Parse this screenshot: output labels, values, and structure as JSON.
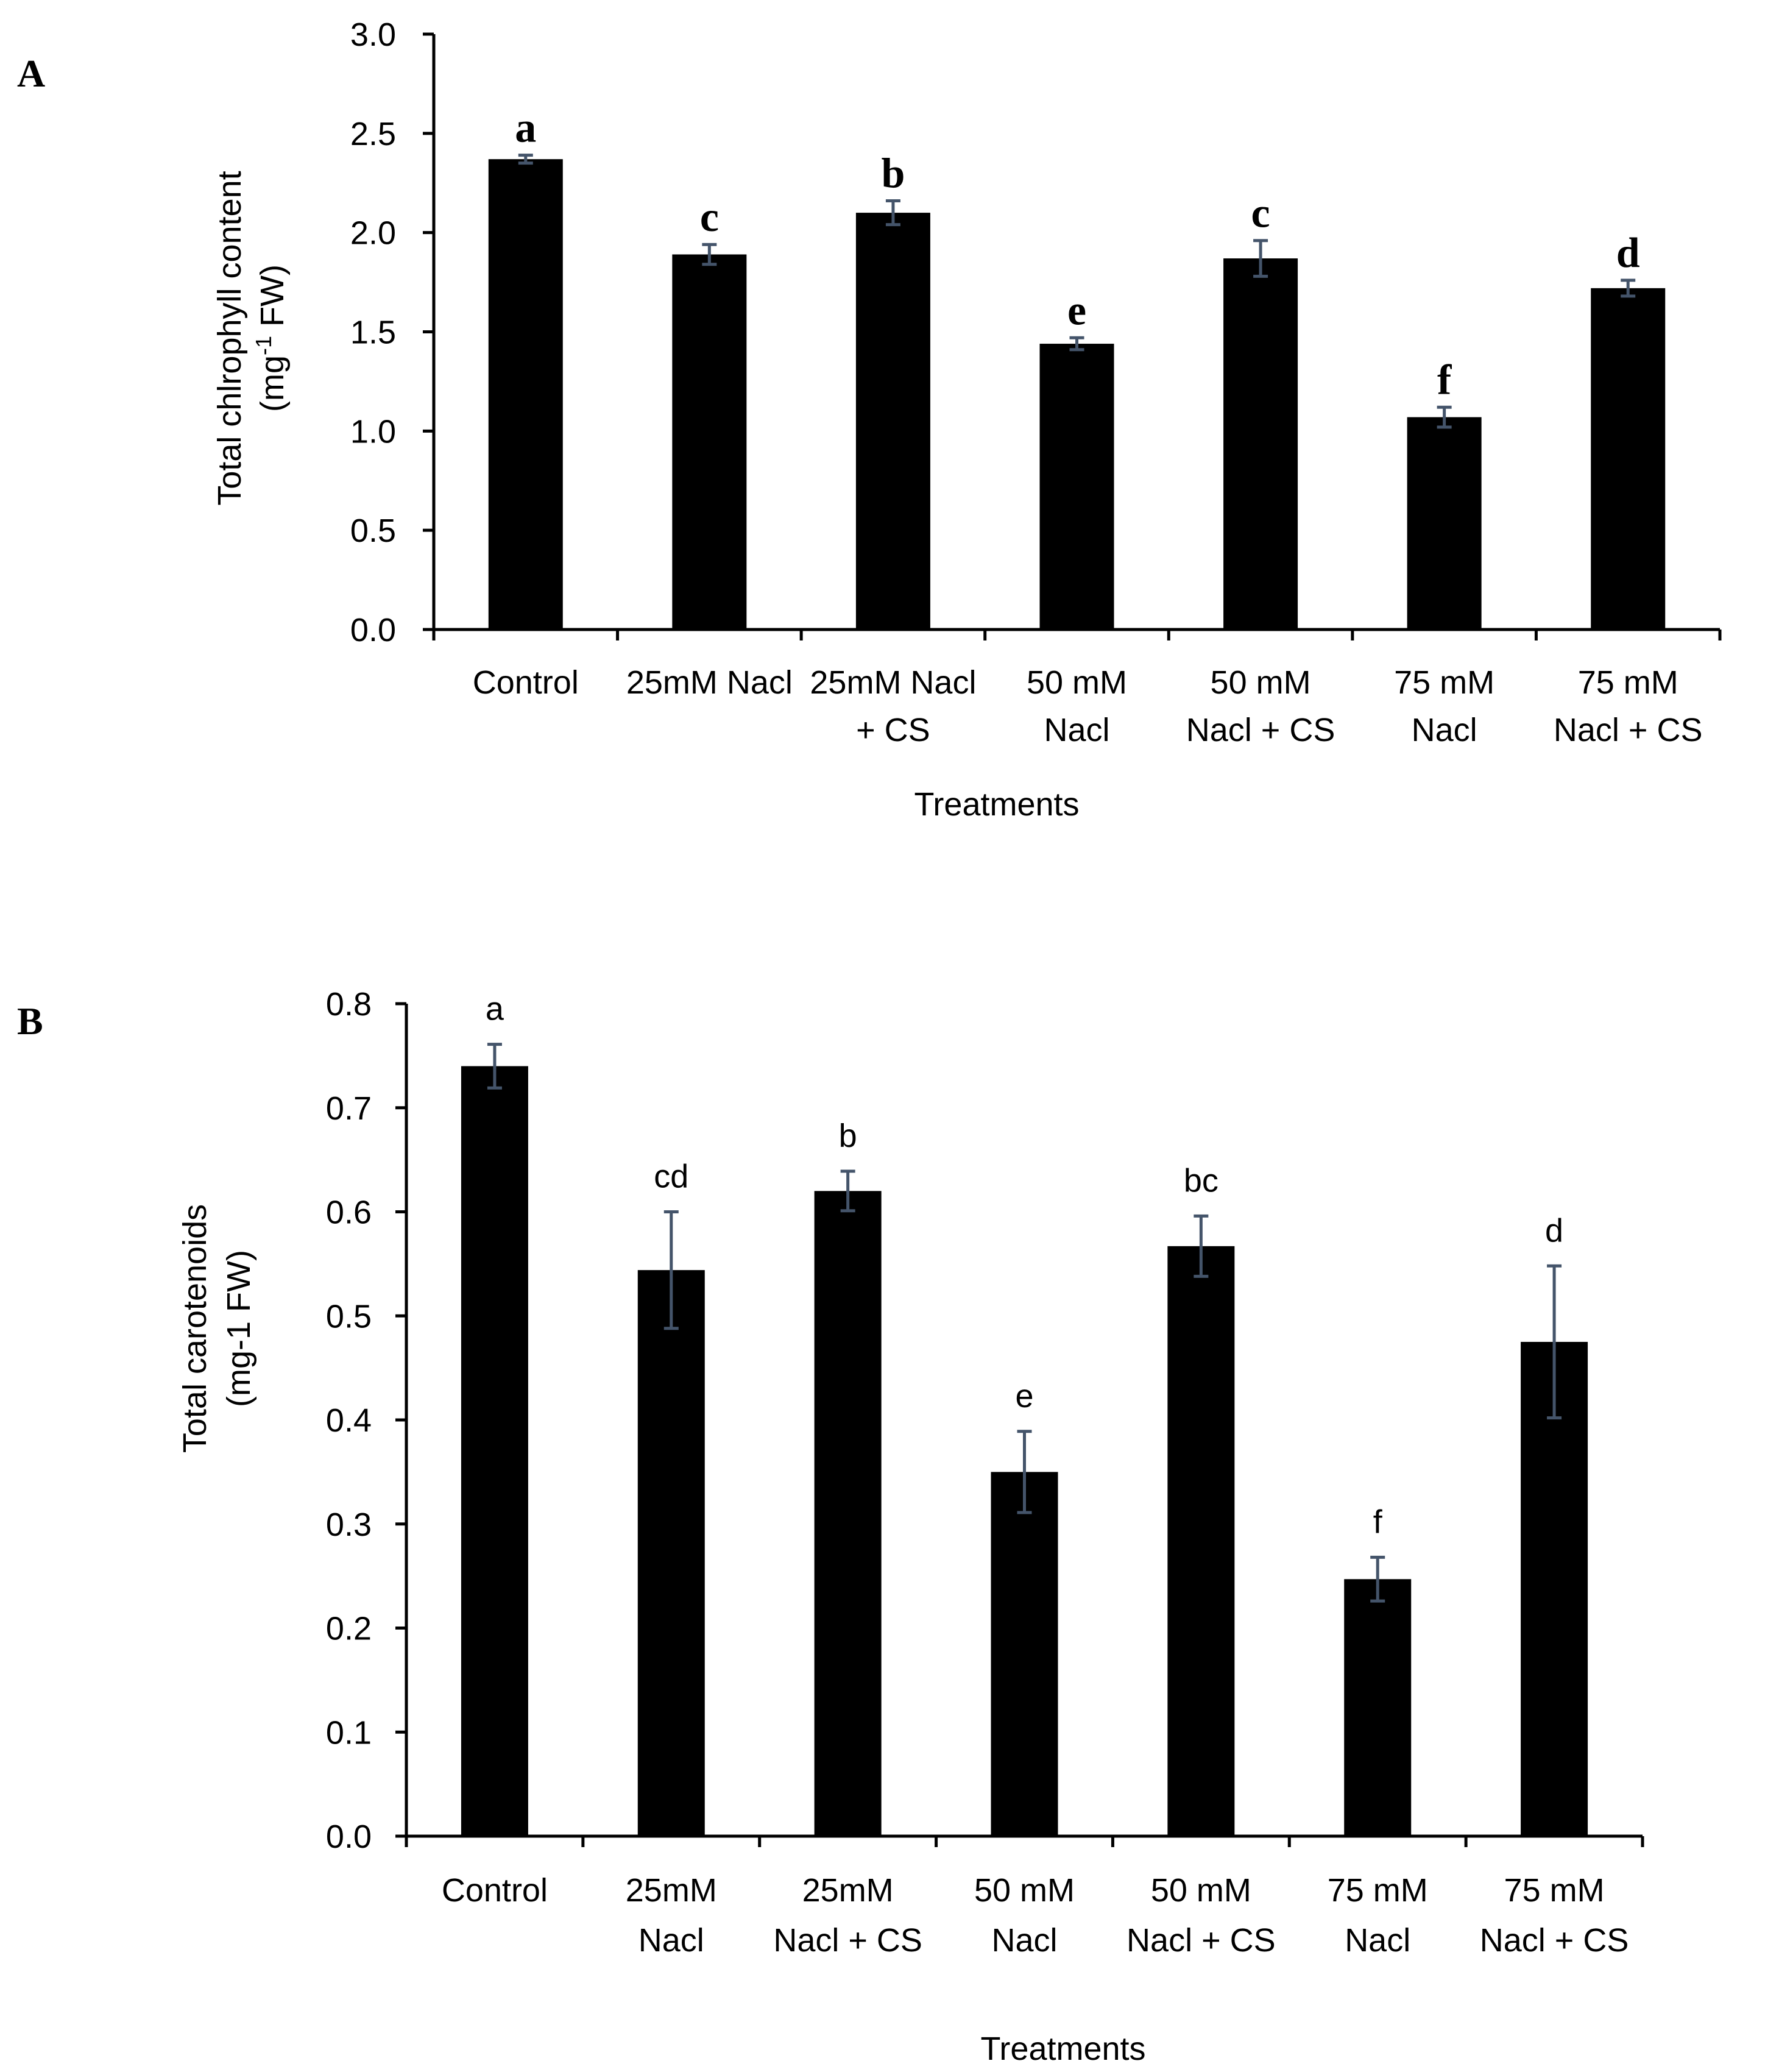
{
  "chart_data": [
    {
      "panel": "A",
      "type": "bar",
      "categories": [
        [
          "Control"
        ],
        [
          "25mM Nacl"
        ],
        [
          "25mM Nacl",
          "+ CS"
        ],
        [
          "50 mM",
          "Nacl"
        ],
        [
          "50 mM",
          "Nacl + CS"
        ],
        [
          "75 mM",
          "Nacl"
        ],
        [
          "75 mM",
          "Nacl + CS"
        ]
      ],
      "values": [
        2.37,
        1.89,
        2.1,
        1.44,
        1.87,
        1.07,
        1.72
      ],
      "errors": [
        0.02,
        0.05,
        0.06,
        0.03,
        0.09,
        0.05,
        0.04
      ],
      "letters": [
        "a",
        "c",
        "b",
        "e",
        "c",
        "f",
        "d"
      ],
      "ylabel_line1": "Total chlrophyll content",
      "ylabel_line2_pre": "(mg",
      "ylabel_line2_sup": "-1",
      "ylabel_line2_post": " FW)",
      "xlabel": "Treatments",
      "ylim": [
        0,
        3.0
      ],
      "yticks": [
        "0.0",
        "0.5",
        "1.0",
        "1.5",
        "2.0",
        "2.5",
        "3.0"
      ],
      "colors": {
        "bar": "#000000",
        "error_bar": "#44546a"
      }
    },
    {
      "panel": "B",
      "type": "bar",
      "categories": [
        [
          "Control"
        ],
        [
          "25mM",
          "Nacl"
        ],
        [
          "25mM",
          "Nacl + CS"
        ],
        [
          "50 mM",
          "Nacl"
        ],
        [
          "50 mM",
          "Nacl + CS"
        ],
        [
          "75 mM",
          "Nacl"
        ],
        [
          "75 mM",
          "Nacl + CS"
        ]
      ],
      "values": [
        0.74,
        0.544,
        0.62,
        0.35,
        0.567,
        0.247,
        0.475
      ],
      "errors": [
        0.021,
        0.056,
        0.019,
        0.039,
        0.029,
        0.021,
        0.073
      ],
      "letters": [
        "a",
        "cd",
        "b",
        "e",
        "bc",
        "f",
        "d"
      ],
      "ylabel_line1": "Total carotenoids",
      "ylabel_line2": "(mg-1 FW)",
      "xlabel": "Treatments",
      "ylim": [
        0,
        0.8
      ],
      "yticks": [
        "0.0",
        "0.1",
        "0.2",
        "0.3",
        "0.4",
        "0.5",
        "0.6",
        "0.7",
        "0.8"
      ],
      "colors": {
        "bar": "#000000",
        "error_bar": "#44546a"
      }
    }
  ]
}
